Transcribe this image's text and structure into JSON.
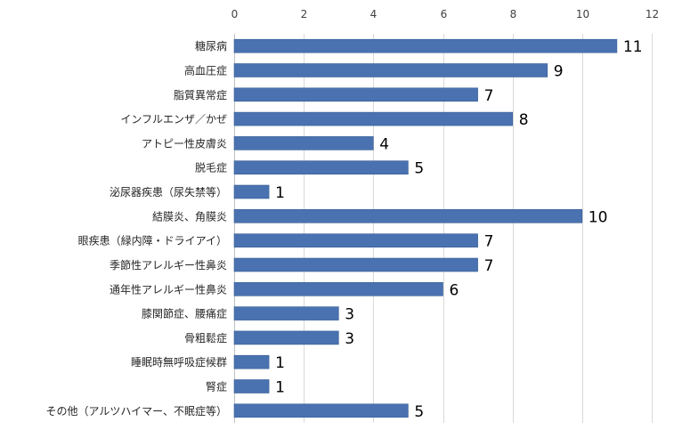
{
  "colors": {
    "bar": "#4a72b0",
    "bar_edge": "#3b5f98",
    "grid": "#d9d9d9",
    "background": "#ffffff"
  },
  "chart_data": {
    "type": "bar",
    "orientation": "horizontal",
    "title": "",
    "xlabel": "",
    "ylabel": "",
    "xlim": [
      0,
      12
    ],
    "ticks": [
      0,
      2,
      4,
      6,
      8,
      10,
      12
    ],
    "tick_labels": [
      "0",
      "2",
      "4",
      "6",
      "8",
      "10",
      "12"
    ],
    "grid": true,
    "legend": "none",
    "categories": [
      "糖尿病",
      "高血圧症",
      "脂質異常症",
      "インフルエンザ／かぜ",
      "アトピー性皮膚炎",
      "脱毛症",
      "泌尿器疾患（尿失禁等）",
      "結膜炎、角膜炎",
      "眼疾患（緑内障・ドライアイ）",
      "季節性アレルギー性鼻炎",
      "通年性アレルギー性鼻炎",
      "膝関節症、腰痛症",
      "骨粗鬆症",
      "睡眠時無呼吸症候群",
      "腎症",
      "その他（アルツハイマー、不眠症等）"
    ],
    "values": [
      11,
      9,
      7,
      8,
      4,
      5,
      1,
      10,
      7,
      7,
      6,
      3,
      3,
      1,
      1,
      5
    ],
    "data_labels": [
      "11",
      "9",
      "7",
      "8",
      "4",
      "5",
      "1",
      "10",
      "7",
      "7",
      "6",
      "3",
      "3",
      "1",
      "1",
      "5"
    ]
  }
}
